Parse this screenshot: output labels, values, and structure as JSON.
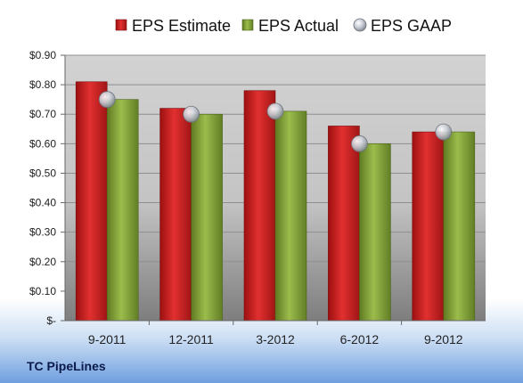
{
  "company_label": "TC PipeLines",
  "chart_data": {
    "type": "bar",
    "categories": [
      "9-2011",
      "12-2011",
      "3-2012",
      "6-2012",
      "9-2012"
    ],
    "series": [
      {
        "name": "EPS Estimate",
        "kind": "bar",
        "color": "#cc1f1f",
        "values": [
          0.81,
          0.72,
          0.78,
          0.66,
          0.64
        ]
      },
      {
        "name": "EPS Actual",
        "kind": "bar",
        "color": "#86a33a",
        "values": [
          0.75,
          0.7,
          0.71,
          0.6,
          0.64
        ]
      },
      {
        "name": "EPS GAAP",
        "kind": "marker",
        "color": "#b8bcc4",
        "values": [
          0.75,
          0.7,
          0.71,
          0.6,
          0.64
        ]
      }
    ],
    "ylim": [
      0,
      0.9
    ],
    "y_ticks": [
      {
        "value": 0.0,
        "label": "$-"
      },
      {
        "value": 0.1,
        "label": "$0.10"
      },
      {
        "value": 0.2,
        "label": "$0.20"
      },
      {
        "value": 0.3,
        "label": "$0.30"
      },
      {
        "value": 0.4,
        "label": "$0.40"
      },
      {
        "value": 0.5,
        "label": "$0.50"
      },
      {
        "value": 0.6,
        "label": "$0.60"
      },
      {
        "value": 0.7,
        "label": "$0.70"
      },
      {
        "value": 0.8,
        "label": "$0.80"
      },
      {
        "value": 0.9,
        "label": "$0.90"
      }
    ],
    "grid": true,
    "legend": "top-center"
  }
}
